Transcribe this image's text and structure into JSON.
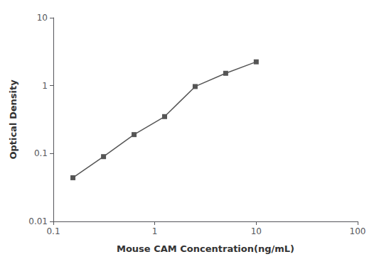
{
  "chart_data": {
    "type": "line",
    "x": [
      0.156,
      0.3125,
      0.625,
      1.25,
      2.5,
      5.0,
      10.0
    ],
    "values": [
      0.044,
      0.09,
      0.19,
      0.35,
      0.97,
      1.52,
      2.24
    ],
    "xlabel": "Mouse CAM Concentration(ng/mL)",
    "ylabel": "Optical Density",
    "xlim": [
      0.1,
      100
    ],
    "ylim": [
      0.01,
      10
    ],
    "xticks": [
      0.1,
      1,
      10,
      100
    ],
    "yticks": [
      0.01,
      0.1,
      1,
      10
    ],
    "log": true,
    "grid": false,
    "color": "#555555",
    "marker": "square"
  }
}
